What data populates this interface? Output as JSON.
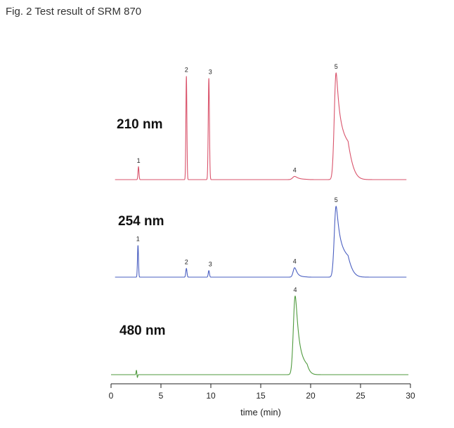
{
  "caption": "Fig. 2 Test result of SRM 870",
  "chart_data": {
    "type": "line",
    "xlabel": "time (min)",
    "xlim": [
      0,
      30
    ],
    "xticks": [
      "0",
      "5",
      "10",
      "15",
      "20",
      "25",
      "30"
    ],
    "grid": false,
    "series": [
      {
        "name": "210 nm",
        "color": "#d9536b",
        "x_start": 0.4,
        "x_end": 29.6,
        "peaks": [
          {
            "label": "1",
            "t": 2.75,
            "height": 0.12,
            "width": 0.05,
            "tail": 0
          },
          {
            "label": "2",
            "t": 7.55,
            "height": 0.97,
            "width": 0.05,
            "tail": 0
          },
          {
            "label": "3",
            "t": 9.8,
            "height": 0.95,
            "width": 0.06,
            "tail": 0
          },
          {
            "label": "4",
            "t": 18.4,
            "height": 0.03,
            "width": 0.2,
            "tail": 0.3
          },
          {
            "label": "5",
            "t": 22.55,
            "height": 1.0,
            "width": 0.18,
            "tail": 0.55
          }
        ]
      },
      {
        "name": "254 nm",
        "color": "#4a5fc1",
        "x_start": 0.4,
        "x_end": 29.6,
        "peaks": [
          {
            "label": "1",
            "t": 2.7,
            "height": 0.44,
            "width": 0.05,
            "tail": 0
          },
          {
            "label": "2",
            "t": 7.55,
            "height": 0.12,
            "width": 0.06,
            "tail": 0
          },
          {
            "label": "3",
            "t": 9.8,
            "height": 0.09,
            "width": 0.06,
            "tail": 0
          },
          {
            "label": "4",
            "t": 18.4,
            "height": 0.13,
            "width": 0.15,
            "tail": 0.25
          },
          {
            "label": "5",
            "t": 22.55,
            "height": 0.98,
            "width": 0.18,
            "tail": 0.5
          }
        ]
      },
      {
        "name": "480 nm",
        "color": "#4f9a3e",
        "x_start": 0.0,
        "x_end": 29.8,
        "peaks": [
          {
            "label": "4",
            "t": 18.45,
            "height": 1.0,
            "width": 0.18,
            "tail": 0.35
          }
        ]
      }
    ]
  }
}
